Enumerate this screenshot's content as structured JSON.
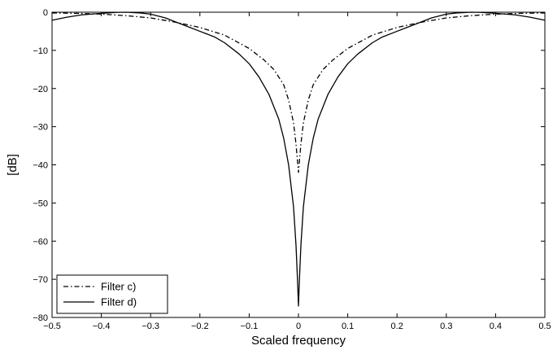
{
  "chart_data": {
    "type": "line",
    "title": "",
    "xlabel": "Scaled frequency",
    "ylabel": "[dB]",
    "xlim": [
      -0.5,
      0.5
    ],
    "ylim": [
      -80,
      0
    ],
    "xticks": [
      -0.5,
      -0.4,
      -0.3,
      -0.2,
      -0.1,
      0,
      0.1,
      0.2,
      0.3,
      0.4,
      0.5
    ],
    "xtick_labels": [
      "−0.5",
      "−0.4",
      "−0.3",
      "−0.2",
      "−0.1",
      "0",
      "0.1",
      "0.2",
      "0.3",
      "0.4",
      "0.5"
    ],
    "yticks": [
      0,
      -10,
      -20,
      -30,
      -40,
      -50,
      -60,
      -70,
      -80
    ],
    "ytick_labels": [
      "0",
      "−10",
      "−20",
      "−30",
      "−40",
      "−50",
      "−60",
      "−70",
      "−80"
    ],
    "grid": false,
    "legend_position": "bottom-left",
    "series": [
      {
        "name": "Filter c)",
        "line_style": "dash-dot",
        "color": "#000000",
        "points": [
          [
            -0.5,
            -0.2
          ],
          [
            -0.45,
            -0.3
          ],
          [
            -0.4,
            -0.5
          ],
          [
            -0.35,
            -0.9
          ],
          [
            -0.3,
            -1.5
          ],
          [
            -0.25,
            -2.6
          ],
          [
            -0.2,
            -4.0
          ],
          [
            -0.15,
            -6.0
          ],
          [
            -0.1,
            -9.5
          ],
          [
            -0.07,
            -12.5
          ],
          [
            -0.05,
            -15.0
          ],
          [
            -0.03,
            -19.0
          ],
          [
            -0.02,
            -23.0
          ],
          [
            -0.01,
            -29.0
          ],
          [
            -0.005,
            -34.5
          ],
          [
            0,
            -42.0
          ],
          [
            0.005,
            -34.5
          ],
          [
            0.01,
            -29.0
          ],
          [
            0.02,
            -23.0
          ],
          [
            0.03,
            -19.0
          ],
          [
            0.05,
            -15.0
          ],
          [
            0.07,
            -12.5
          ],
          [
            0.1,
            -9.5
          ],
          [
            0.15,
            -6.0
          ],
          [
            0.2,
            -4.0
          ],
          [
            0.25,
            -2.6
          ],
          [
            0.3,
            -1.5
          ],
          [
            0.35,
            -0.9
          ],
          [
            0.4,
            -0.5
          ],
          [
            0.45,
            -0.3
          ],
          [
            0.5,
            -0.2
          ]
        ]
      },
      {
        "name": "Filter d)",
        "line_style": "solid",
        "color": "#000000",
        "points": [
          [
            -0.5,
            -2.1
          ],
          [
            -0.47,
            -1.3
          ],
          [
            -0.44,
            -0.7
          ],
          [
            -0.4,
            -0.3
          ],
          [
            -0.37,
            -0.05
          ],
          [
            -0.35,
            0.0
          ],
          [
            -0.32,
            -0.2
          ],
          [
            -0.3,
            -0.5
          ],
          [
            -0.27,
            -1.5
          ],
          [
            -0.25,
            -2.5
          ],
          [
            -0.22,
            -4.0
          ],
          [
            -0.2,
            -5.0
          ],
          [
            -0.17,
            -6.5
          ],
          [
            -0.15,
            -8.0
          ],
          [
            -0.12,
            -11.0
          ],
          [
            -0.1,
            -13.5
          ],
          [
            -0.08,
            -17.0
          ],
          [
            -0.06,
            -21.5
          ],
          [
            -0.04,
            -28.0
          ],
          [
            -0.03,
            -33.0
          ],
          [
            -0.02,
            -40.0
          ],
          [
            -0.01,
            -51.0
          ],
          [
            -0.005,
            -61.0
          ],
          [
            -0.002,
            -70.0
          ],
          [
            0,
            -77.0
          ],
          [
            0.002,
            -70.0
          ],
          [
            0.005,
            -61.0
          ],
          [
            0.01,
            -51.0
          ],
          [
            0.02,
            -40.0
          ],
          [
            0.03,
            -33.0
          ],
          [
            0.04,
            -28.0
          ],
          [
            0.06,
            -21.5
          ],
          [
            0.08,
            -17.0
          ],
          [
            0.1,
            -13.5
          ],
          [
            0.12,
            -11.0
          ],
          [
            0.15,
            -8.0
          ],
          [
            0.17,
            -6.5
          ],
          [
            0.2,
            -5.0
          ],
          [
            0.22,
            -4.0
          ],
          [
            0.25,
            -2.5
          ],
          [
            0.27,
            -1.5
          ],
          [
            0.3,
            -0.5
          ],
          [
            0.32,
            -0.2
          ],
          [
            0.35,
            0.0
          ],
          [
            0.37,
            -0.05
          ],
          [
            0.4,
            -0.3
          ],
          [
            0.44,
            -0.7
          ],
          [
            0.47,
            -1.3
          ],
          [
            0.5,
            -2.1
          ]
        ]
      }
    ]
  }
}
